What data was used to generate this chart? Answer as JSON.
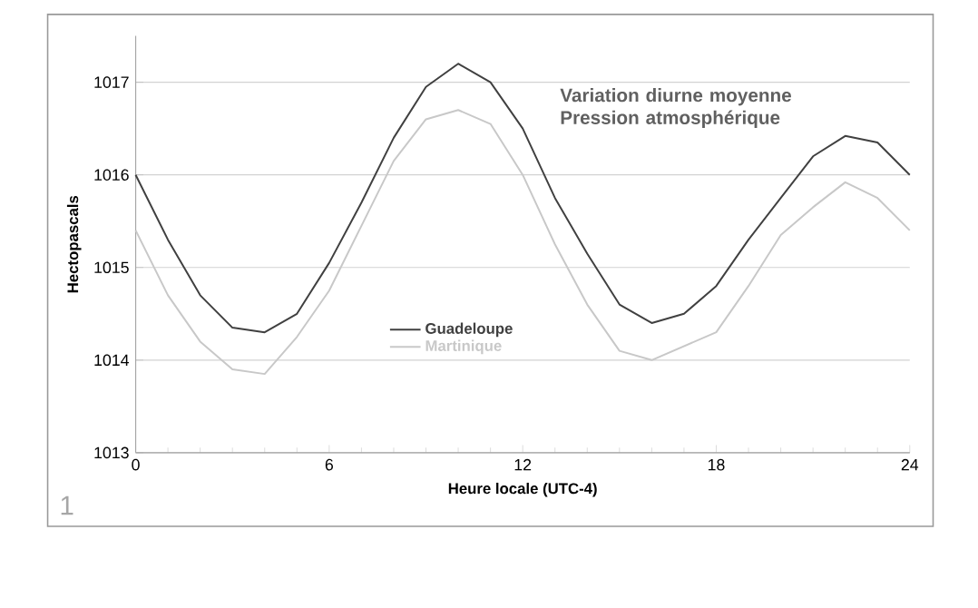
{
  "chart_data": {
    "type": "line",
    "title": "Variation diurne moyenne Pression atmosphérique",
    "xlabel": "Heure locale (UTC-4)",
    "ylabel": "Hectopascals",
    "annotations": [
      "1"
    ],
    "x": [
      0,
      1,
      2,
      3,
      4,
      5,
      6,
      7,
      8,
      9,
      10,
      11,
      12,
      13,
      14,
      15,
      16,
      17,
      18,
      19,
      20,
      21,
      22,
      23,
      24
    ],
    "series": [
      {
        "name": "Guadeloupe",
        "color": "#404040",
        "values": [
          1016.0,
          1015.3,
          1014.7,
          1014.35,
          1014.3,
          1014.5,
          1015.05,
          1015.7,
          1016.4,
          1016.95,
          1017.2,
          1017.0,
          1016.5,
          1015.75,
          1015.15,
          1014.6,
          1014.4,
          1014.5,
          1014.8,
          1015.3,
          1015.75,
          1016.2,
          1016.42,
          1016.35,
          1016.0
        ]
      },
      {
        "name": "Martinique",
        "color": "#c8c8c8",
        "values": [
          1015.4,
          1014.7,
          1014.2,
          1013.9,
          1013.85,
          1014.25,
          1014.75,
          1015.45,
          1016.15,
          1016.6,
          1016.7,
          1016.55,
          1016.0,
          1015.25,
          1014.6,
          1014.1,
          1014.0,
          1014.15,
          1014.3,
          1014.8,
          1015.35,
          1015.65,
          1015.92,
          1015.75,
          1015.4
        ]
      }
    ],
    "xlim": [
      0,
      24
    ],
    "xticks": [
      0,
      6,
      12,
      18,
      24
    ],
    "ylim": [
      1013,
      1017.5
    ],
    "yticks": [
      1013,
      1014,
      1015,
      1016,
      1017
    ],
    "grid": "y",
    "legend": "left",
    "marker": "none",
    "line_style": "solid"
  }
}
